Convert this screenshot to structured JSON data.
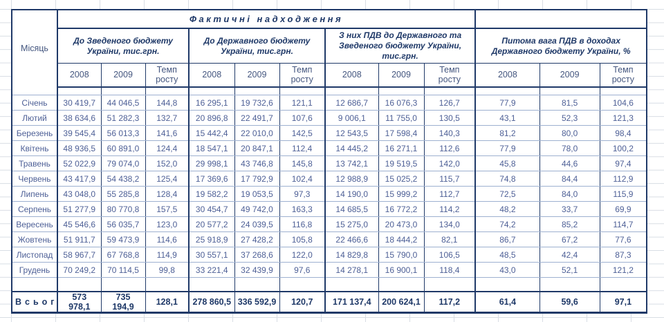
{
  "colors": {
    "table_border": "#1f3968",
    "row_separator": "#9db0d0",
    "sheet_gridline": "#d8dde4",
    "data_text": "#4d5f96",
    "header_text": "#1f3968"
  },
  "table": {
    "spanning_title": "Фактичні надходження",
    "month_header": "Місяць",
    "groups": [
      {
        "label": "До Зведеного бюджету України, тис.грн."
      },
      {
        "label": "До Державного бюджету України, тис.грн."
      },
      {
        "label": "З них ПДВ до Державного та Зведеного бюджету України, тис.грн."
      },
      {
        "label": "Питома вага ПДВ в доходах Державного бюджету України, %"
      }
    ],
    "year_headers": [
      "2008",
      "2009",
      "Темп росту"
    ],
    "rows": [
      {
        "month": "Січень",
        "values": [
          "30 419,7",
          "44 046,5",
          "144,8",
          "16 295,1",
          "19 732,6",
          "121,1",
          "12 686,7",
          "16 076,3",
          "126,7",
          "77,9",
          "81,5",
          "104,6"
        ]
      },
      {
        "month": "Лютий",
        "values": [
          "38 634,6",
          "51 282,3",
          "132,7",
          "20 896,8",
          "22 491,7",
          "107,6",
          "9 006,1",
          "11 755,0",
          "130,5",
          "43,1",
          "52,3",
          "121,3"
        ]
      },
      {
        "month": "Березень",
        "values": [
          "39 545,4",
          "56 013,3",
          "141,6",
          "15 442,4",
          "22 010,0",
          "142,5",
          "12 543,5",
          "17 598,4",
          "140,3",
          "81,2",
          "80,0",
          "98,4"
        ]
      },
      {
        "month": "Квітень",
        "values": [
          "48 936,5",
          "60 891,0",
          "124,4",
          "18 547,1",
          "20 847,1",
          "112,4",
          "14 445,2",
          "16 271,1",
          "112,6",
          "77,9",
          "78,0",
          "100,2"
        ]
      },
      {
        "month": "Травень",
        "values": [
          "52 022,9",
          "79 074,0",
          "152,0",
          "29 998,1",
          "43 746,8",
          "145,8",
          "13 742,1",
          "19 519,5",
          "142,0",
          "45,8",
          "44,6",
          "97,4"
        ]
      },
      {
        "month": "Червень",
        "values": [
          "43 417,9",
          "54 438,2",
          "125,4",
          "17 369,6",
          "17 792,9",
          "102,4",
          "12 988,9",
          "15 025,2",
          "115,7",
          "74,8",
          "84,4",
          "112,9"
        ]
      },
      {
        "month": "Липень",
        "values": [
          "43 048,0",
          "55 285,8",
          "128,4",
          "19 582,2",
          "19 053,5",
          "97,3",
          "14 190,0",
          "15 999,2",
          "112,7",
          "72,5",
          "84,0",
          "115,9"
        ]
      },
      {
        "month": "Серпень",
        "values": [
          "51 277,9",
          "80 770,8",
          "157,5",
          "30 454,7",
          "49 742,0",
          "163,3",
          "14 685,5",
          "16 772,2",
          "114,2",
          "48,2",
          "33,7",
          "69,9"
        ]
      },
      {
        "month": "Вересень",
        "values": [
          "45 546,6",
          "56 035,7",
          "123,0",
          "20 577,2",
          "24 039,5",
          "116,8",
          "15 275,0",
          "20 473,0",
          "134,0",
          "74,2",
          "85,2",
          "114,7"
        ]
      },
      {
        "month": "Жовтень",
        "values": [
          "51 911,7",
          "59 473,9",
          "114,6",
          "25 918,9",
          "27 428,2",
          "105,8",
          "22 466,6",
          "18 444,2",
          "82,1",
          "86,7",
          "67,2",
          "77,6"
        ]
      },
      {
        "month": "Листопад",
        "values": [
          "58 967,7",
          "67 768,8",
          "114,9",
          "30 557,1",
          "37 268,6",
          "122,0",
          "14 829,8",
          "15 790,0",
          "106,5",
          "48,5",
          "42,4",
          "87,3"
        ]
      },
      {
        "month": "Грудень",
        "values": [
          "70 249,2",
          "70 114,5",
          "99,8",
          "33 221,4",
          "32 439,9",
          "97,6",
          "14 278,1",
          "16 900,1",
          "118,4",
          "43,0",
          "52,1",
          "121,2"
        ]
      }
    ],
    "total_row": {
      "label": "Всього",
      "values": [
        "573 978,1",
        "735 194,9",
        "128,1",
        "278 860,5",
        "336 592,9",
        "120,7",
        "171 137,4",
        "200 624,1",
        "117,2",
        "61,4",
        "59,6",
        "97,1"
      ]
    }
  }
}
